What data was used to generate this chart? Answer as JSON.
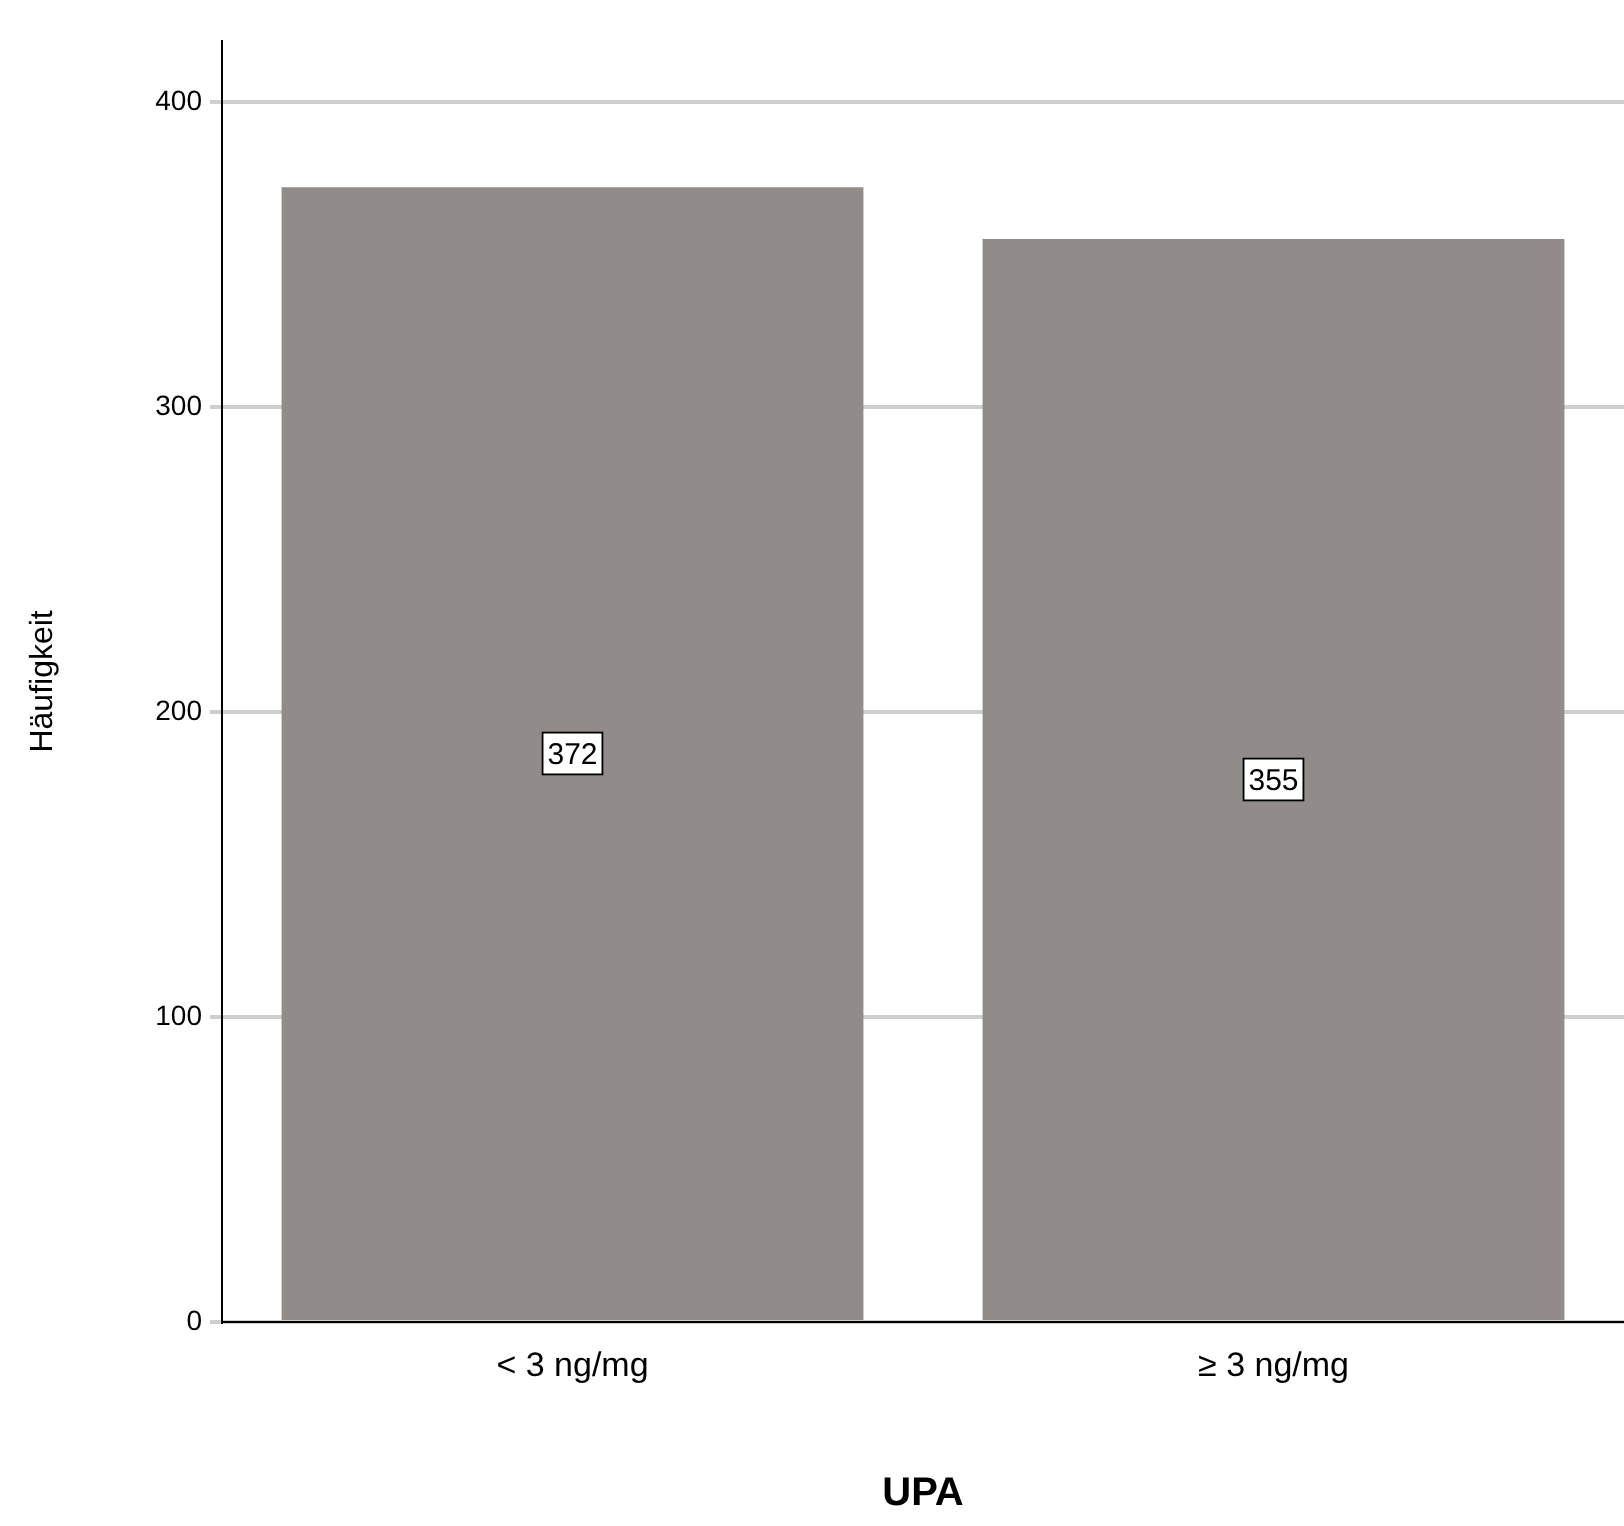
{
  "chart_data": {
    "type": "bar",
    "xlabel": "UPA",
    "ylabel": "Häufigkeit",
    "categories": [
      "< 3 ng/mg",
      "≥ 3 ng/mg"
    ],
    "values": [
      372,
      355
    ],
    "color": "#918c8a",
    "ylim": [
      0,
      420
    ],
    "yticks": [
      0,
      100,
      200,
      300,
      400
    ],
    "grid": "y",
    "legend": false,
    "data_labels": true
  }
}
